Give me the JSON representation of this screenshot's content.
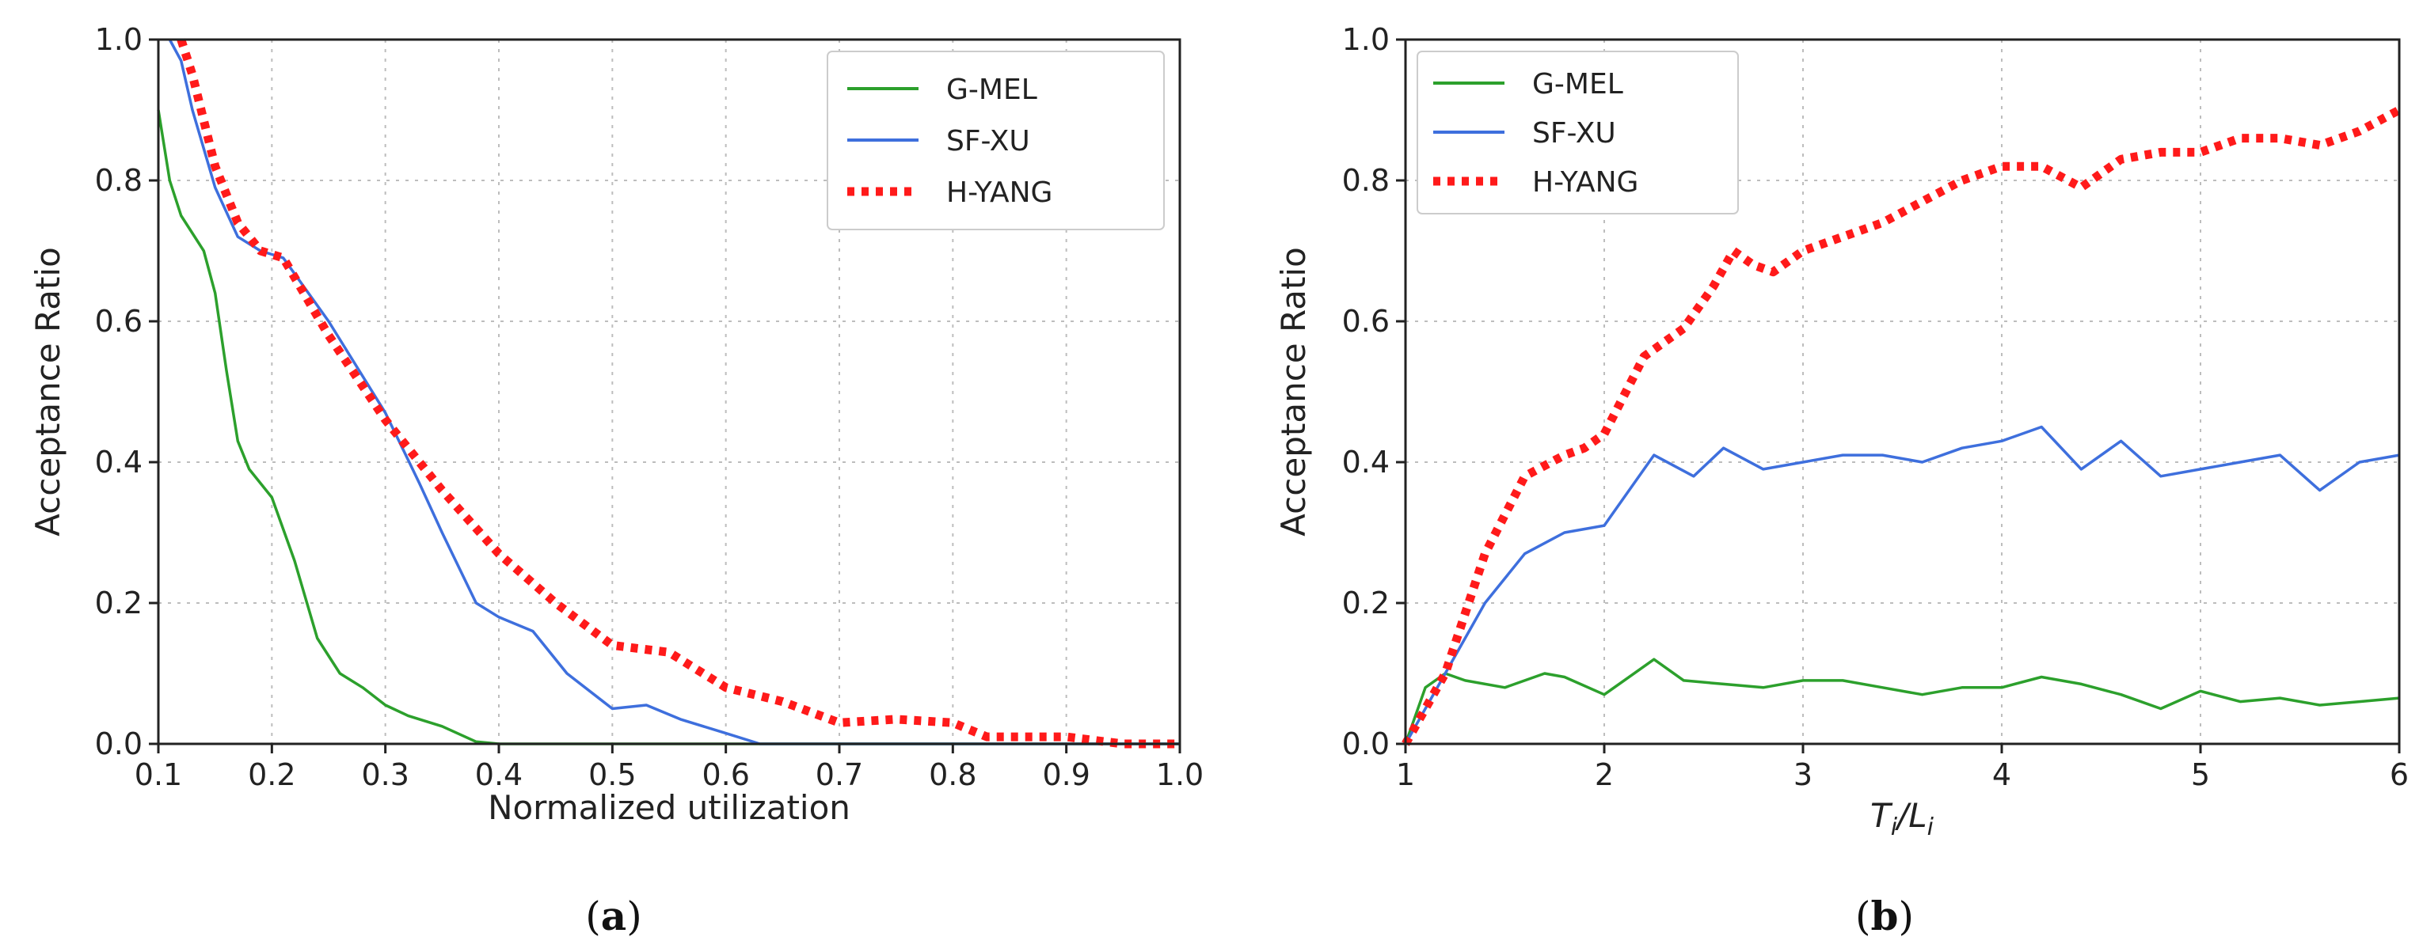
{
  "chart_data": [
    {
      "id": "a",
      "type": "line",
      "caption_letter": "a",
      "xlabel": "Normalized utilization",
      "ylabel": "Acceptance Ratio",
      "xlim": [
        0.1,
        1.0
      ],
      "ylim": [
        0.0,
        1.0
      ],
      "xticks": [
        "0.1",
        "0.2",
        "0.3",
        "0.4",
        "0.5",
        "0.6",
        "0.7",
        "0.8",
        "0.9",
        "1.0"
      ],
      "yticks": [
        "0.0",
        "0.2",
        "0.4",
        "0.6",
        "0.8",
        "1.0"
      ],
      "grid": true,
      "legend_position": "top-right",
      "series": [
        {
          "name": "G-MEL",
          "color": "#2ca02c",
          "style": "solid",
          "x": [
            0.1,
            0.11,
            0.12,
            0.14,
            0.15,
            0.16,
            0.17,
            0.18,
            0.2,
            0.22,
            0.24,
            0.26,
            0.28,
            0.3,
            0.32,
            0.35,
            0.38,
            0.4,
            1.0
          ],
          "y": [
            0.9,
            0.8,
            0.75,
            0.7,
            0.64,
            0.53,
            0.43,
            0.39,
            0.35,
            0.26,
            0.15,
            0.1,
            0.08,
            0.055,
            0.04,
            0.025,
            0.003,
            0.0,
            0.0
          ]
        },
        {
          "name": "SF-XU",
          "color": "#3e6fdd",
          "style": "solid",
          "x": [
            0.11,
            0.12,
            0.13,
            0.15,
            0.17,
            0.19,
            0.21,
            0.25,
            0.3,
            0.33,
            0.35,
            0.38,
            0.4,
            0.43,
            0.46,
            0.5,
            0.53,
            0.56,
            0.6,
            0.63,
            1.0
          ],
          "y": [
            1.0,
            0.97,
            0.9,
            0.79,
            0.72,
            0.7,
            0.69,
            0.6,
            0.47,
            0.37,
            0.3,
            0.2,
            0.18,
            0.16,
            0.1,
            0.05,
            0.055,
            0.035,
            0.015,
            0.0,
            0.0
          ]
        },
        {
          "name": "H-YANG",
          "color": "#ff1a1a",
          "style": "dotted",
          "x": [
            0.12,
            0.13,
            0.15,
            0.17,
            0.19,
            0.21,
            0.25,
            0.3,
            0.35,
            0.4,
            0.45,
            0.5,
            0.55,
            0.6,
            0.65,
            0.7,
            0.75,
            0.8,
            0.83,
            0.9,
            0.95,
            1.0
          ],
          "y": [
            1.0,
            0.95,
            0.82,
            0.74,
            0.7,
            0.69,
            0.58,
            0.46,
            0.36,
            0.27,
            0.2,
            0.14,
            0.13,
            0.08,
            0.06,
            0.03,
            0.035,
            0.03,
            0.01,
            0.01,
            0.0,
            0.0
          ]
        }
      ]
    },
    {
      "id": "b",
      "type": "line",
      "caption_letter": "b",
      "xlabel_main": "T",
      "xlabel_sub": "i",
      "xlabel_sep": "/L",
      "xlabel_sub2": "i",
      "ylabel": "Acceptance Ratio",
      "xlim": [
        1,
        6
      ],
      "ylim": [
        0.0,
        1.0
      ],
      "xticks": [
        "1",
        "2",
        "3",
        "4",
        "5",
        "6"
      ],
      "yticks": [
        "0.0",
        "0.2",
        "0.4",
        "0.6",
        "0.8",
        "1.0"
      ],
      "grid": true,
      "legend_position": "top-left",
      "series": [
        {
          "name": "G-MEL",
          "color": "#2ca02c",
          "style": "solid",
          "x": [
            1.0,
            1.1,
            1.2,
            1.3,
            1.5,
            1.7,
            1.8,
            2.0,
            2.1,
            2.25,
            2.4,
            2.6,
            2.8,
            3.0,
            3.2,
            3.4,
            3.6,
            3.8,
            4.0,
            4.2,
            4.4,
            4.6,
            4.8,
            5.0,
            5.2,
            5.4,
            5.6,
            5.8,
            6.0
          ],
          "y": [
            0.0,
            0.08,
            0.1,
            0.09,
            0.08,
            0.1,
            0.095,
            0.07,
            0.09,
            0.12,
            0.09,
            0.085,
            0.08,
            0.09,
            0.09,
            0.08,
            0.07,
            0.08,
            0.08,
            0.095,
            0.085,
            0.07,
            0.05,
            0.075,
            0.06,
            0.065,
            0.055,
            0.06,
            0.065
          ]
        },
        {
          "name": "SF-XU",
          "color": "#3e6fdd",
          "style": "solid",
          "x": [
            1.0,
            1.2,
            1.4,
            1.6,
            1.8,
            2.0,
            2.1,
            2.25,
            2.45,
            2.6,
            2.8,
            3.0,
            3.2,
            3.4,
            3.6,
            3.8,
            4.0,
            4.2,
            4.4,
            4.6,
            4.8,
            5.0,
            5.2,
            5.4,
            5.6,
            5.8,
            6.0
          ],
          "y": [
            0.0,
            0.1,
            0.2,
            0.27,
            0.3,
            0.31,
            0.35,
            0.41,
            0.38,
            0.42,
            0.39,
            0.4,
            0.41,
            0.41,
            0.4,
            0.42,
            0.43,
            0.45,
            0.39,
            0.43,
            0.38,
            0.39,
            0.4,
            0.41,
            0.36,
            0.4,
            0.41
          ]
        },
        {
          "name": "H-YANG",
          "color": "#ff1a1a",
          "style": "dotted",
          "x": [
            1.0,
            1.2,
            1.4,
            1.6,
            1.8,
            1.9,
            2.0,
            2.2,
            2.4,
            2.55,
            2.65,
            2.75,
            2.85,
            3.0,
            3.2,
            3.4,
            3.6,
            3.8,
            4.0,
            4.2,
            4.4,
            4.6,
            4.8,
            5.0,
            5.2,
            5.4,
            5.6,
            5.8,
            6.0
          ],
          "y": [
            0.0,
            0.1,
            0.27,
            0.38,
            0.41,
            0.42,
            0.44,
            0.55,
            0.59,
            0.65,
            0.7,
            0.68,
            0.67,
            0.7,
            0.72,
            0.74,
            0.77,
            0.8,
            0.82,
            0.82,
            0.79,
            0.83,
            0.84,
            0.84,
            0.86,
            0.86,
            0.85,
            0.87,
            0.9
          ]
        }
      ]
    }
  ]
}
